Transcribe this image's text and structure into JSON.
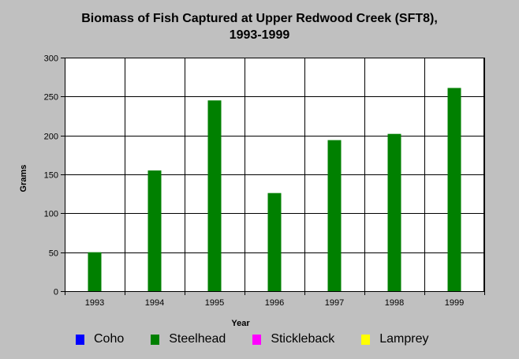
{
  "chart_data": {
    "type": "bar",
    "title_line1": "Biomass of Fish Captured at Upper Redwood Creek (SFT8),",
    "title_line2": "1993-1999",
    "xlabel": "Year",
    "ylabel": "Grams",
    "ylim": [
      0,
      300
    ],
    "yticks": [
      0,
      50,
      100,
      150,
      200,
      250,
      300
    ],
    "categories": [
      "1993",
      "1994",
      "1995",
      "1996",
      "1997",
      "1998",
      "1999"
    ],
    "grid": true,
    "legend_position": "bottom",
    "series": [
      {
        "name": "Coho",
        "color": "#0000ff",
        "values": [
          0,
          0,
          0,
          0,
          0,
          0,
          0
        ]
      },
      {
        "name": "Steelhead",
        "color": "#008000",
        "values": [
          50,
          155,
          245,
          126,
          194,
          202,
          261
        ]
      },
      {
        "name": "Stickleback",
        "color": "#ff00ff",
        "values": [
          0,
          0,
          0,
          0,
          0,
          0,
          0
        ]
      },
      {
        "name": "Lamprey",
        "color": "#ffff00",
        "values": [
          0,
          0,
          0,
          0,
          0,
          0,
          0
        ]
      }
    ]
  }
}
